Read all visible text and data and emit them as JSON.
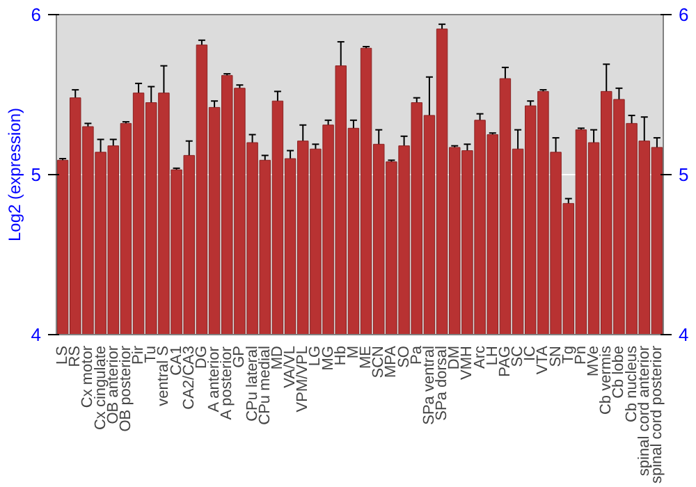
{
  "chart_data": {
    "type": "bar",
    "ylabel": "Log2 (expression)",
    "categories": [
      "LS",
      "RS",
      "Cx motor",
      "Cx cingulate",
      "OB anterior",
      "OB posterior",
      "Pir",
      "Tu",
      "ventral S",
      "CA1",
      "CA2/CA3",
      "DG",
      "A anterior",
      "A posterior",
      "GP",
      "CPu lateral",
      "CPu medial",
      "MD",
      "VA/VL",
      "VPM/VPL",
      "LG",
      "MG",
      "Hb",
      "M",
      "ME",
      "SCN",
      "MPA",
      "SO",
      "Pa",
      "SPa ventral",
      "SPa dorsal",
      "DM",
      "VMH",
      "Arc",
      "LH",
      "PAG",
      "SC",
      "IC",
      "VTA",
      "SN",
      "Tg",
      "Pn",
      "MVe",
      "Cb vermis",
      "Cb lobe",
      "Cb nucleus",
      "spinal cord anterior",
      "spinal cord posterior"
    ],
    "values": [
      5.09,
      5.48,
      5.3,
      5.14,
      5.18,
      5.32,
      5.51,
      5.45,
      5.51,
      5.03,
      5.12,
      5.81,
      5.42,
      5.62,
      5.54,
      5.2,
      5.09,
      5.46,
      5.1,
      5.21,
      5.16,
      5.31,
      5.68,
      5.29,
      5.79,
      5.19,
      5.08,
      5.18,
      5.45,
      5.37,
      5.91,
      5.17,
      5.15,
      5.34,
      5.25,
      5.6,
      5.16,
      5.43,
      5.52,
      5.14,
      4.82,
      5.28,
      5.2,
      5.52,
      5.47,
      5.32,
      5.21,
      5.17
    ],
    "errors": [
      0.01,
      0.05,
      0.02,
      0.08,
      0.04,
      0.01,
      0.06,
      0.1,
      0.17,
      0.01,
      0.09,
      0.03,
      0.04,
      0.01,
      0.02,
      0.05,
      0.03,
      0.06,
      0.05,
      0.1,
      0.03,
      0.03,
      0.15,
      0.05,
      0.01,
      0.09,
      0.01,
      0.06,
      0.03,
      0.24,
      0.03,
      0.01,
      0.04,
      0.04,
      0.01,
      0.07,
      0.12,
      0.03,
      0.01,
      0.09,
      0.03,
      0.01,
      0.08,
      0.17,
      0.07,
      0.05,
      0.15,
      0.06
    ],
    "color": "#b83232",
    "ylim": [
      4,
      6
    ],
    "yticks": [
      4,
      5,
      6
    ],
    "y2lim": [
      4,
      6
    ],
    "y2ticks": [
      4,
      5,
      6
    ],
    "grid": "y"
  }
}
